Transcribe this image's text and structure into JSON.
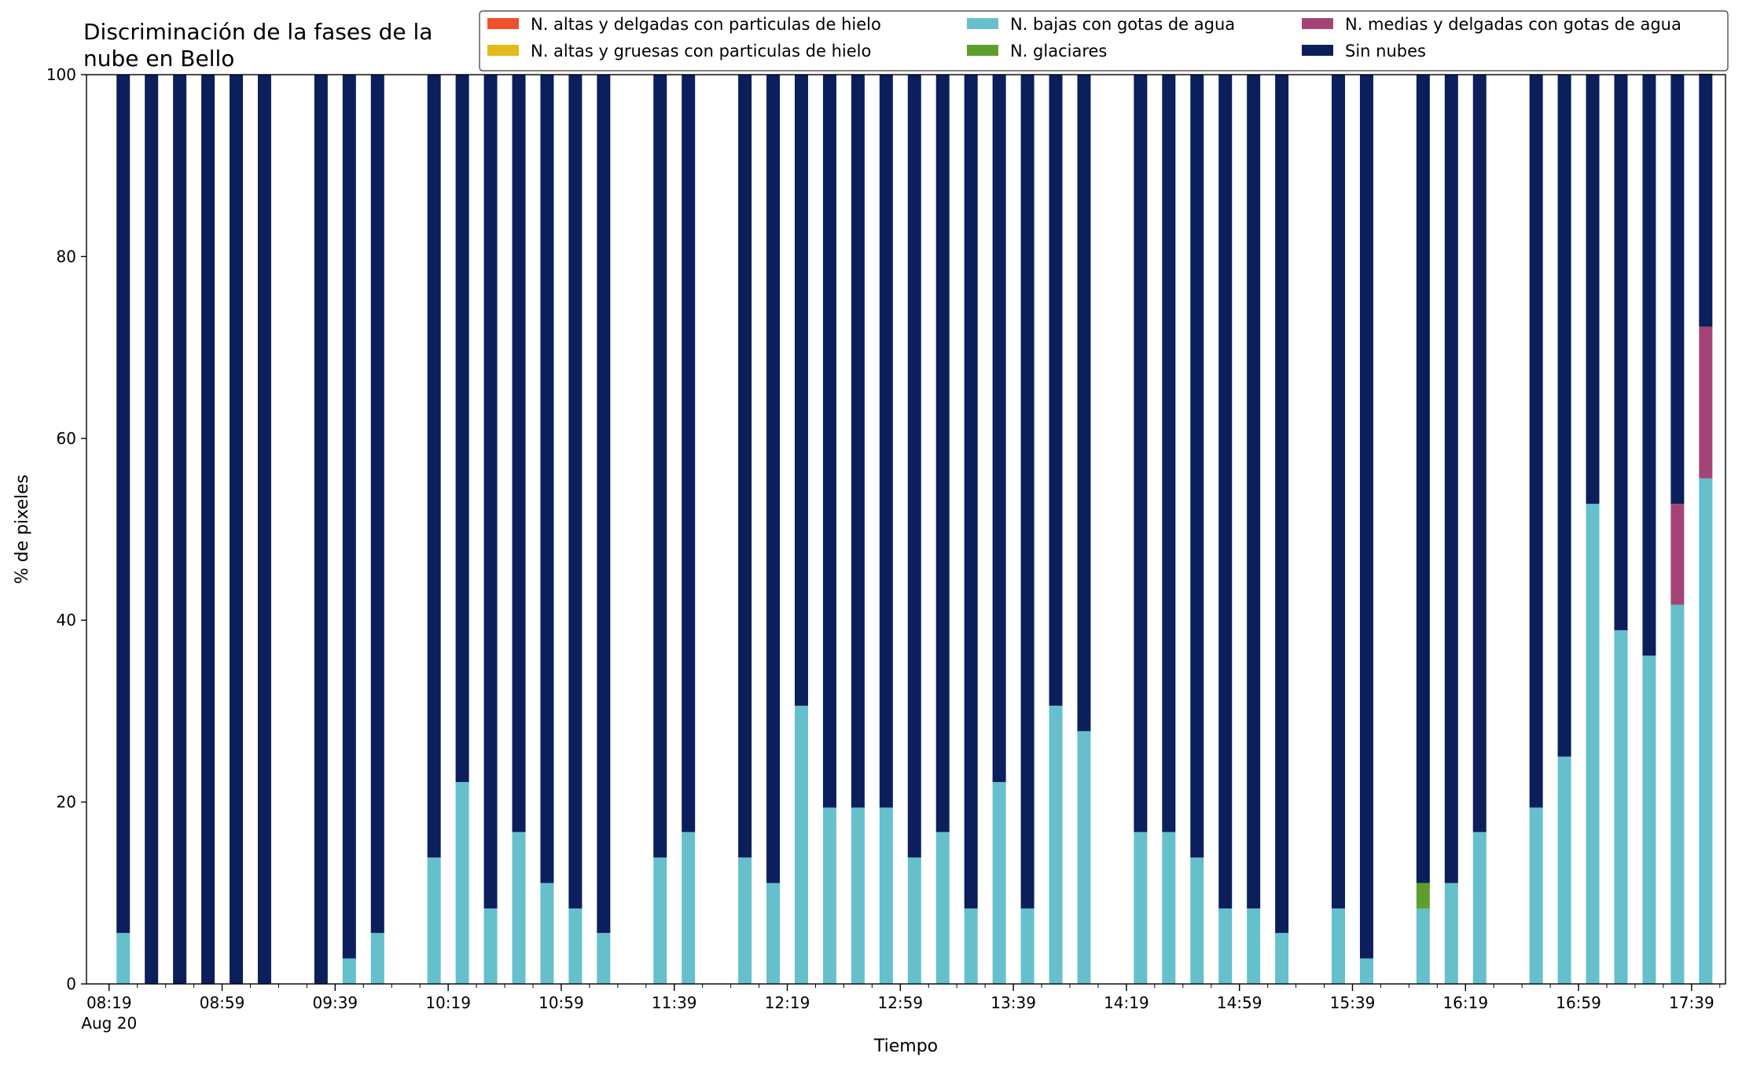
{
  "chart_data": {
    "type": "bar",
    "stacked": true,
    "title": "Discriminación de la fases de la\nnube en Bello",
    "xlabel": "Tiempo",
    "ylabel": "% de pixeles",
    "ylim": [
      0,
      100
    ],
    "yticks": [
      0,
      20,
      40,
      60,
      80,
      100
    ],
    "xtick_labels": [
      "08:19",
      "08:59",
      "09:39",
      "10:19",
      "10:59",
      "11:39",
      "12:19",
      "12:59",
      "13:39",
      "14:19",
      "14:59",
      "15:39",
      "16:19",
      "16:59",
      "17:39"
    ],
    "xtick_sublabel": "Aug 20",
    "grid": false,
    "legend_position": "top-right",
    "x": [
      "08:24",
      "08:34",
      "08:44",
      "08:54",
      "09:04",
      "09:14",
      "09:34",
      "09:44",
      "09:54",
      "10:14",
      "10:24",
      "10:34",
      "10:44",
      "10:54",
      "11:04",
      "11:14",
      "11:34",
      "11:44",
      "12:04",
      "12:14",
      "12:24",
      "12:34",
      "12:44",
      "12:54",
      "13:04",
      "13:14",
      "13:24",
      "13:34",
      "13:44",
      "13:54",
      "14:04",
      "14:24",
      "14:34",
      "14:44",
      "14:54",
      "15:04",
      "15:14",
      "15:34",
      "15:44",
      "16:04",
      "16:14",
      "16:24",
      "16:44",
      "16:54",
      "17:04",
      "17:14",
      "17:24",
      "17:34",
      "17:44"
    ],
    "series": [
      {
        "name": "N. altas y delgadas con particulas de hielo",
        "color": "#f0502a",
        "values": [
          0,
          0,
          0,
          0,
          0,
          0,
          0,
          0,
          0,
          0,
          0,
          0,
          0,
          0,
          0,
          0,
          0,
          0,
          0,
          0,
          0,
          0,
          0,
          0,
          0,
          0,
          0,
          0,
          0,
          0,
          0,
          0,
          0,
          0,
          0,
          0,
          0,
          0,
          0,
          0,
          0,
          0,
          0,
          0,
          0,
          0,
          0,
          0,
          0
        ]
      },
      {
        "name": "N. altas y gruesas con particulas de hielo",
        "color": "#e4b91e",
        "values": [
          0,
          0,
          0,
          0,
          0,
          0,
          0,
          0,
          0,
          0,
          0,
          0,
          0,
          0,
          0,
          0,
          0,
          0,
          0,
          0,
          0,
          0,
          0,
          0,
          0,
          0,
          0,
          0,
          0,
          0,
          0,
          0,
          0,
          0,
          0,
          0,
          0,
          0,
          0,
          0,
          0,
          0,
          0,
          0,
          0,
          0,
          0,
          0,
          0
        ]
      },
      {
        "name": "N. bajas con gotas de agua",
        "color": "#65c0cc",
        "values": [
          5.6,
          0,
          0,
          0,
          0,
          0,
          0,
          2.8,
          5.6,
          13.9,
          22.2,
          8.3,
          16.7,
          11.1,
          8.3,
          5.6,
          13.9,
          16.7,
          13.9,
          11.1,
          30.6,
          19.4,
          19.4,
          19.4,
          13.9,
          16.7,
          8.3,
          22.2,
          8.3,
          30.6,
          27.8,
          16.7,
          16.7,
          13.9,
          8.3,
          8.3,
          5.6,
          8.3,
          2.8,
          8.3,
          11.1,
          16.7,
          19.4,
          25.0,
          52.8,
          38.9,
          36.1,
          41.7,
          55.6
        ]
      },
      {
        "name": "N. glaciares",
        "color": "#5e9e2c",
        "values": [
          0,
          0,
          0,
          0,
          0,
          0,
          0,
          0,
          0,
          0,
          0,
          0,
          0,
          0,
          0,
          0,
          0,
          0,
          0,
          0,
          0,
          0,
          0,
          0,
          0,
          0,
          0,
          0,
          0,
          0,
          0,
          0,
          0,
          0,
          0,
          0,
          0,
          0,
          0,
          2.8,
          0,
          0,
          0,
          0,
          0,
          0,
          0,
          0,
          0
        ]
      },
      {
        "name": "N. medias y delgadas con gotas de agua",
        "color": "#a44476",
        "values": [
          0,
          0,
          0,
          0,
          0,
          0,
          0,
          0,
          0,
          0,
          0,
          0,
          0,
          0,
          0,
          0,
          0,
          0,
          0,
          0,
          0,
          0,
          0,
          0,
          0,
          0,
          0,
          0,
          0,
          0,
          0,
          0,
          0,
          0,
          0,
          0,
          0,
          0,
          0,
          0,
          0,
          0,
          0,
          0,
          0,
          0,
          0,
          11.1,
          16.7
        ]
      },
      {
        "name": "Sin nubes",
        "color": "#0a1f5c",
        "values": [
          94.4,
          100,
          100,
          100,
          100,
          100,
          100,
          97.2,
          94.4,
          86.1,
          77.8,
          91.7,
          83.3,
          88.9,
          91.7,
          94.4,
          86.1,
          83.3,
          86.1,
          88.9,
          69.4,
          80.6,
          80.6,
          80.6,
          86.1,
          83.3,
          91.7,
          77.8,
          91.7,
          69.4,
          72.2,
          83.3,
          83.3,
          86.1,
          91.7,
          91.7,
          94.4,
          91.7,
          97.2,
          88.9,
          88.9,
          83.3,
          80.6,
          75.0,
          47.2,
          61.1,
          63.9,
          47.2,
          27.8
        ]
      }
    ]
  }
}
